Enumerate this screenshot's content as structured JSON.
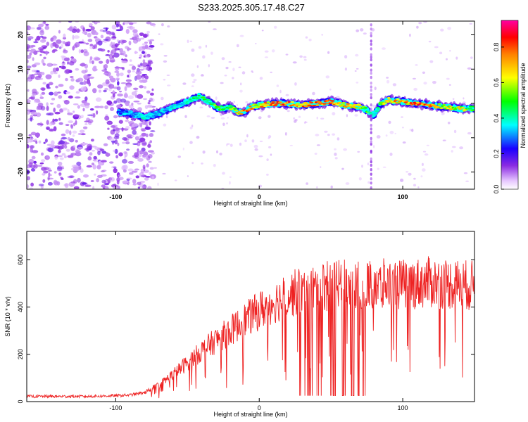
{
  "title": "S233.2025.305.17.48.C27",
  "colors": {
    "snr_line": "#ee2222",
    "frame": "#000000"
  },
  "chart_data": [
    {
      "type": "heatmap",
      "title": "S233.2025.305.17.48.C27",
      "xlabel": "Height of straight line (km)",
      "ylabel": "Frequency (Hz)",
      "xlim": [
        -162,
        150
      ],
      "ylim": [
        -25,
        24
      ],
      "x_ticks": [
        -100,
        0,
        100
      ],
      "x_tick_labels": [
        "-100",
        "0",
        "100"
      ],
      "y_ticks": [
        -20,
        -10,
        0,
        10,
        20
      ],
      "y_tick_labels": [
        "-20",
        "-10",
        "0",
        "10",
        "20"
      ],
      "colorbar": {
        "label": "Normalized spectral amplitude",
        "range": [
          0,
          0.95
        ],
        "ticks": [
          0.0,
          0.2,
          0.4,
          0.6,
          0.8
        ],
        "tick_labels": [
          "0.0",
          "0.2",
          "0.4",
          "0.6",
          "0.8"
        ],
        "colormap": "rainbow"
      },
      "ridge": {
        "description": "dominant frequency track vs height",
        "x": [
          -98,
          -90,
          -80,
          -70,
          -60,
          -50,
          -42,
          -35,
          -30,
          -25,
          -20,
          -15,
          -10,
          -5,
          0,
          10,
          20,
          30,
          40,
          50,
          60,
          70,
          75,
          80,
          85,
          90,
          100,
          110,
          120,
          130,
          140,
          150
        ],
        "frequency": [
          -2.5,
          -3,
          -4,
          -3,
          -1,
          0.5,
          2,
          0.5,
          -1,
          -1.5,
          -1,
          -2.5,
          -2.5,
          -1,
          -0.5,
          0,
          0,
          -0.5,
          0,
          0.5,
          -0.5,
          -1,
          -2,
          -3.5,
          0,
          1,
          0.5,
          0,
          -0.5,
          -1,
          -1.5,
          -1.5
        ],
        "amplitude": [
          0.3,
          0.35,
          0.45,
          0.4,
          0.4,
          0.45,
          0.55,
          0.5,
          0.7,
          0.55,
          0.6,
          0.75,
          0.85,
          0.8,
          0.8,
          0.9,
          0.9,
          0.85,
          0.9,
          0.9,
          0.85,
          0.75,
          0.6,
          0.4,
          0.6,
          0.8,
          0.85,
          0.9,
          0.85,
          0.75,
          0.7,
          0.6
        ]
      },
      "noise_region_x": [
        -162,
        -80
      ],
      "vertical_artifact_x": 78
    },
    {
      "type": "line",
      "xlabel": "Height of straight line (km)",
      "ylabel": "SNR (10 * v/v)",
      "xlim": [
        -162,
        150
      ],
      "ylim": [
        0,
        720
      ],
      "x_ticks": [
        -100,
        0,
        100
      ],
      "x_tick_labels": [
        "-100",
        "0",
        "100"
      ],
      "y_ticks": [
        0,
        200,
        400,
        600
      ],
      "y_tick_labels": [
        "0",
        "200",
        "400",
        "600"
      ],
      "series": [
        {
          "name": "SNR",
          "x": [
            -162,
            -140,
            -120,
            -100,
            -90,
            -80,
            -70,
            -60,
            -50,
            -40,
            -30,
            -20,
            -10,
            0,
            10,
            20,
            30,
            40,
            50,
            60,
            70,
            80,
            90,
            100,
            110,
            120,
            130,
            140,
            150
          ],
          "values": [
            22,
            22,
            22,
            25,
            28,
            38,
            70,
            115,
            165,
            215,
            260,
            300,
            345,
            385,
            420,
            450,
            470,
            480,
            490,
            495,
            500,
            500,
            495,
            495,
            500,
            505,
            500,
            495,
            490
          ]
        }
      ],
      "dropouts": [
        {
          "x_range": [
            27,
            37
          ],
          "value": 25
        },
        {
          "x_range": [
            40,
            45
          ],
          "value": 25
        },
        {
          "x_range": [
            47,
            54
          ],
          "value": 25
        },
        {
          "x_range": [
            57,
            62
          ],
          "value": 25
        },
        {
          "x_range": [
            64,
            75
          ],
          "value": 25
        },
        {
          "x_range": [
            82,
            86
          ],
          "value": 30
        }
      ]
    }
  ]
}
